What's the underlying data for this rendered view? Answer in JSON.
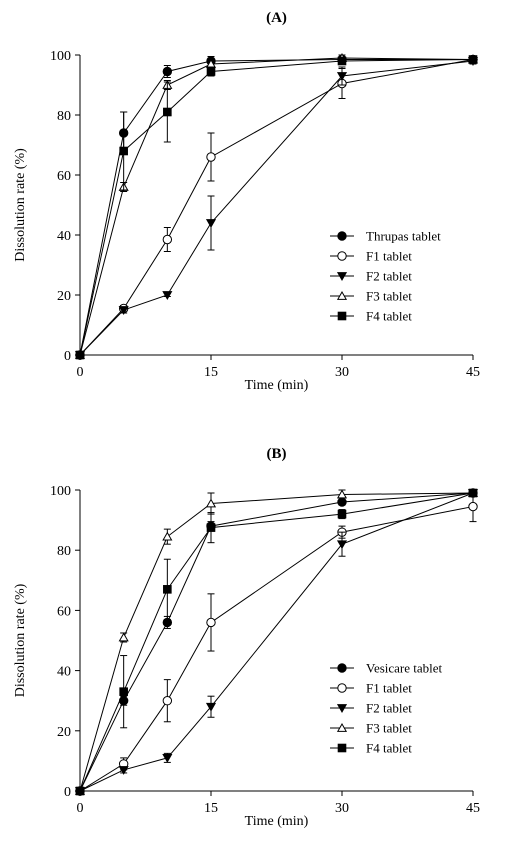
{
  "chart_data": [
    {
      "type": "line",
      "panel_label": "(A)",
      "xlabel": "Time (min)",
      "ylabel": "Dissolution rate (%)",
      "xlim": [
        0,
        45
      ],
      "ylim": [
        0,
        100
      ],
      "x_ticks": [
        0,
        15,
        30,
        45
      ],
      "y_ticks": [
        0,
        20,
        40,
        60,
        80,
        100
      ],
      "x": [
        0,
        5,
        10,
        15,
        30,
        45
      ],
      "legend_position": "right",
      "series": [
        {
          "name": "Thrupas tablet",
          "marker": "circle-filled",
          "values": [
            0,
            74,
            94.5,
            98,
            98.5,
            98.5
          ],
          "errors": [
            0,
            7,
            2,
            1.5,
            1,
            1
          ]
        },
        {
          "name": "F1 tablet",
          "marker": "circle-open",
          "values": [
            0,
            15.5,
            38.5,
            66,
            90.5,
            98.5
          ],
          "errors": [
            0,
            1,
            4,
            8,
            5,
            1
          ]
        },
        {
          "name": "F2 tablet",
          "marker": "triangle-down-filled",
          "values": [
            0,
            15,
            20,
            44,
            93,
            98
          ],
          "errors": [
            0,
            1,
            0.5,
            9,
            3,
            1
          ]
        },
        {
          "name": "F3 tablet",
          "marker": "triangle-up-open",
          "values": [
            0,
            56,
            90,
            97,
            99,
            98.5
          ],
          "errors": [
            0,
            1.5,
            1.5,
            1.5,
            1,
            1
          ]
        },
        {
          "name": "F4 tablet",
          "marker": "square-filled",
          "values": [
            0,
            68,
            81,
            94.5,
            98,
            98.5
          ],
          "errors": [
            0,
            13,
            10,
            1.5,
            1,
            1
          ]
        }
      ]
    },
    {
      "type": "line",
      "panel_label": "(B)",
      "xlabel": "Time (min)",
      "ylabel": "Dissolution rate (%)",
      "xlim": [
        0,
        45
      ],
      "ylim": [
        0,
        100
      ],
      "x_ticks": [
        0,
        15,
        30,
        45
      ],
      "y_ticks": [
        0,
        20,
        40,
        60,
        80,
        100
      ],
      "x": [
        0,
        5,
        10,
        15,
        30,
        45
      ],
      "legend_position": "right",
      "series": [
        {
          "name": "Vesicare tablet",
          "marker": "circle-filled",
          "values": [
            0,
            30,
            56,
            88,
            96,
            99
          ],
          "errors": [
            0,
            1.5,
            2,
            1.5,
            1,
            1
          ]
        },
        {
          "name": "F1 tablet",
          "marker": "circle-open",
          "values": [
            0,
            9,
            30,
            56,
            86,
            94.5
          ],
          "errors": [
            0,
            2,
            7,
            9.5,
            2,
            5
          ]
        },
        {
          "name": "F2 tablet",
          "marker": "triangle-down-filled",
          "values": [
            0,
            7,
            11,
            28,
            82,
            99
          ],
          "errors": [
            0,
            1,
            1.5,
            3.5,
            4,
            1
          ]
        },
        {
          "name": "F3 tablet",
          "marker": "triangle-up-open",
          "values": [
            0,
            51,
            84.5,
            95.5,
            98.5,
            99
          ],
          "errors": [
            0,
            1.5,
            2.5,
            3.5,
            1.5,
            1
          ]
        },
        {
          "name": "F4 tablet",
          "marker": "square-filled",
          "values": [
            0,
            33,
            67,
            87.5,
            92,
            99
          ],
          "errors": [
            0,
            12,
            10,
            5,
            1.5,
            1
          ]
        }
      ]
    }
  ]
}
